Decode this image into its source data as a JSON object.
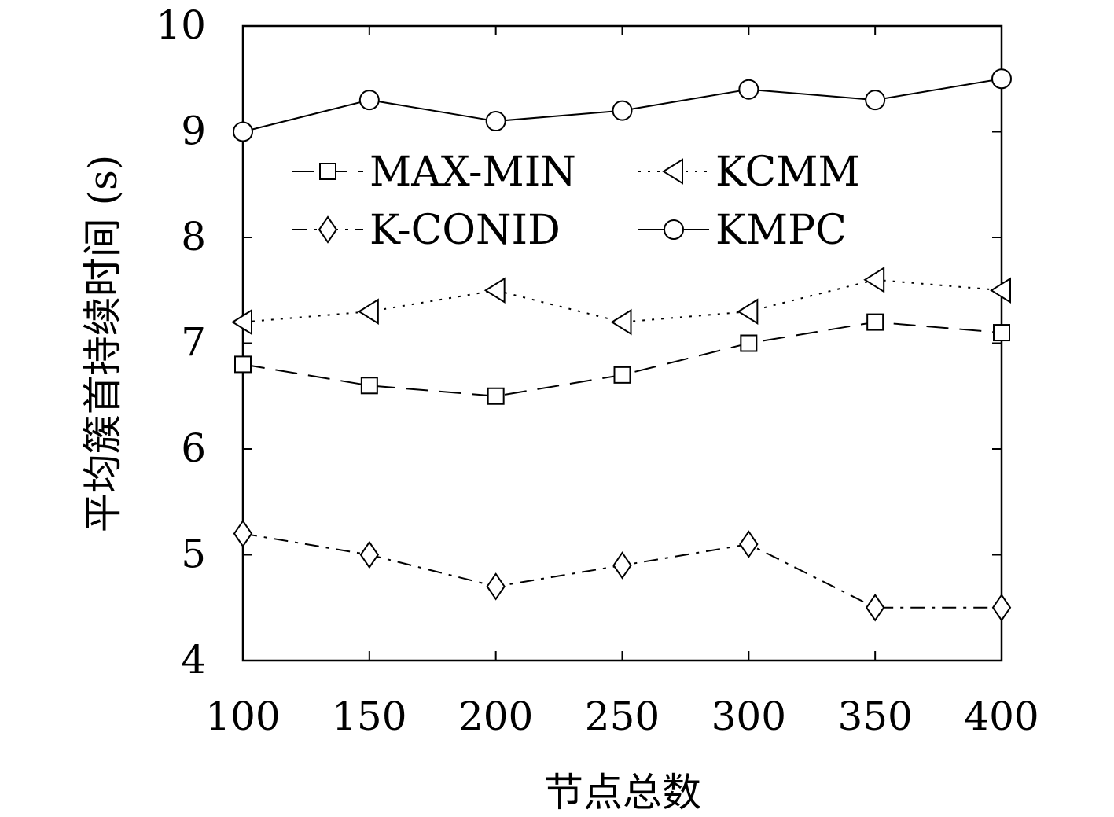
{
  "chart_data": {
    "type": "line",
    "title": "",
    "xlabel": "节点总数",
    "ylabel": "平均簇首持续时间 (s)",
    "x": [
      100,
      150,
      200,
      250,
      300,
      350,
      400
    ],
    "xlim": [
      100,
      400
    ],
    "ylim": [
      4,
      10
    ],
    "xticks": [
      "100",
      "150",
      "200",
      "250",
      "300",
      "350",
      "400"
    ],
    "yticks": [
      "4",
      "5",
      "6",
      "7",
      "8",
      "9",
      "10"
    ],
    "grid": false,
    "legend_position": "top-left",
    "series": [
      {
        "name": "MAX-MIN",
        "marker": "square",
        "dash": "long-dash",
        "values": [
          6.8,
          6.6,
          6.5,
          6.7,
          7.0,
          7.2,
          7.1
        ]
      },
      {
        "name": "KCMM",
        "marker": "triangle-left",
        "dash": "dotted",
        "values": [
          7.2,
          7.3,
          7.5,
          7.2,
          7.3,
          7.6,
          7.5
        ]
      },
      {
        "name": "K-CONID",
        "marker": "diamond",
        "dash": "dash-dot",
        "values": [
          5.2,
          5.0,
          4.7,
          4.9,
          5.1,
          4.5,
          4.5
        ]
      },
      {
        "name": "KMPC",
        "marker": "circle",
        "dash": "solid",
        "values": [
          9.0,
          9.3,
          9.1,
          9.2,
          9.4,
          9.3,
          9.5
        ]
      }
    ]
  }
}
